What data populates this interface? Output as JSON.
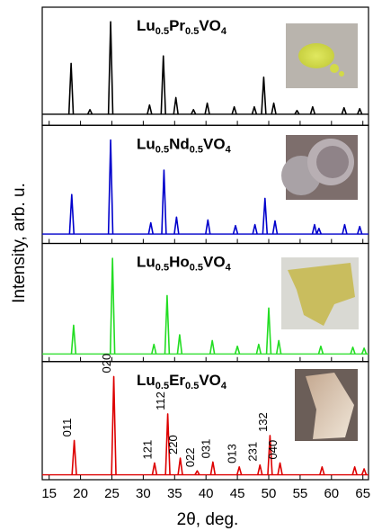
{
  "chart_data": {
    "type": "stacked-peaks",
    "x_label": "2θ, deg.",
    "y_label": "Intensity, arb. u.",
    "xlim": [
      13.9,
      65.9
    ],
    "xticks": [
      15,
      20,
      25,
      30,
      35,
      40,
      45,
      50,
      55,
      60,
      65
    ],
    "panels": [
      {
        "title": "Lu0.5Pr0.5VO4",
        "color": "#000000",
        "ylim": [
          -12,
          108
        ],
        "x": [
          18.5,
          21.5,
          24.8,
          31,
          33.2,
          35.2,
          38,
          40.2,
          44.5,
          47.7,
          49.2,
          50.8,
          54.5,
          57,
          62,
          64.5
        ],
        "values": [
          55,
          5,
          100,
          10,
          63,
          18,
          5,
          12,
          8,
          8,
          40,
          12,
          4,
          8,
          7,
          6
        ]
      },
      {
        "title": "Lu0.5Nd0.5VO4",
        "color": "#0000cc",
        "ylim": [
          -10,
          108
        ],
        "x": [
          18.6,
          24.8,
          31.2,
          33.3,
          35.3,
          40.3,
          44.7,
          47.8,
          49.4,
          51,
          57.3,
          58,
          62.1,
          64.5
        ],
        "values": [
          42,
          100,
          12,
          68,
          18,
          15,
          9,
          10,
          38,
          14,
          10,
          6,
          10,
          8
        ]
      },
      {
        "title": "Lu0.5Ho0.5VO4",
        "color": "#22dd22",
        "ylim": [
          -8,
          108
        ],
        "x": [
          18.9,
          25.1,
          31.7,
          33.8,
          35.8,
          41,
          45,
          48.4,
          50,
          51.6,
          58.3,
          63.4,
          65.2
        ],
        "values": [
          30,
          100,
          10,
          61,
          20,
          14,
          8,
          10,
          48,
          14,
          8,
          7,
          6
        ]
      },
      {
        "title": "Lu0.5Er0.5VO4",
        "color": "#dd0000",
        "ylim": [
          -5,
          108
        ],
        "x": [
          19,
          25.3,
          31.8,
          33.9,
          35.9,
          38.6,
          41.1,
          45.3,
          48.6,
          50.2,
          51.8,
          58.5,
          63.7,
          65.2
        ],
        "values": [
          35,
          100,
          12,
          62,
          17,
          4,
          13,
          8,
          10,
          40,
          12,
          8,
          8,
          6
        ],
        "value_labels": [
          "011",
          "020",
          "121",
          "112",
          "220",
          "022",
          "031",
          "013",
          "231",
          "132",
          "040",
          null,
          null,
          null
        ]
      }
    ]
  }
}
